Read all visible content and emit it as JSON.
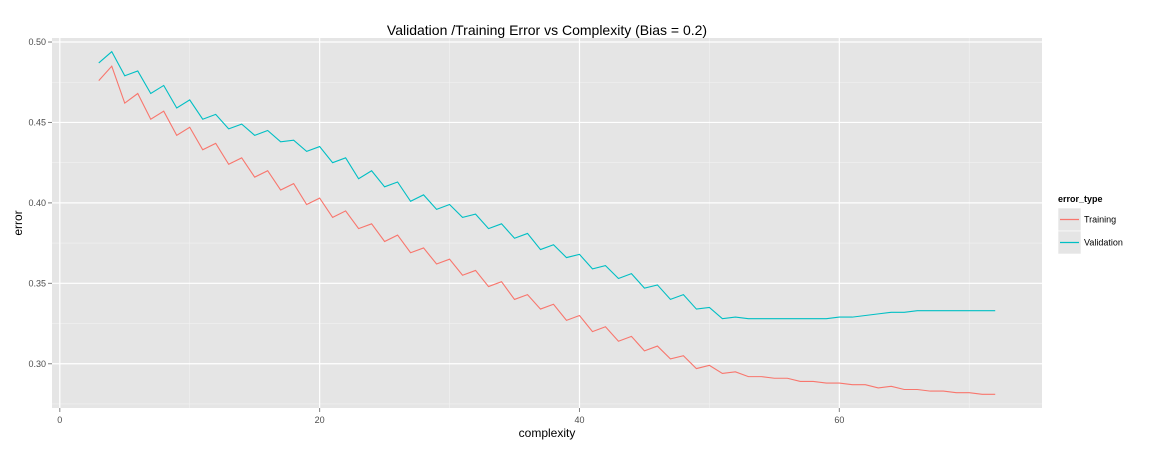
{
  "chart_data": {
    "type": "line",
    "title": "Validation /Training Error vs Complexity (Bias = 0.2)",
    "xlabel": "complexity",
    "ylabel": "error",
    "xlim": [
      -0.6,
      75.6
    ],
    "ylim": [
      0.2725,
      0.5025
    ],
    "x_ticks": [
      0,
      20,
      40,
      60
    ],
    "y_ticks": [
      0.3,
      0.35,
      0.4,
      0.45,
      0.5
    ],
    "x_tick_labels": [
      "0",
      "20",
      "40",
      "60"
    ],
    "y_tick_labels": [
      "0.30",
      "0.35",
      "0.40",
      "0.45",
      "0.50"
    ],
    "grid": true,
    "legend": {
      "title": "error_type",
      "placement": "right",
      "entries": [
        "Training",
        "Validation"
      ]
    },
    "colors": {
      "panel_background": "#e5e5e5",
      "grid_major": "#ffffff",
      "grid_minor": "#f2f2f2",
      "Training": "#f8766d",
      "Validation": "#00bfc4"
    },
    "series": [
      {
        "name": "Training",
        "x": [
          3,
          4,
          5,
          6,
          7,
          8,
          9,
          10,
          11,
          12,
          13,
          14,
          15,
          16,
          17,
          18,
          19,
          20,
          21,
          22,
          23,
          24,
          25,
          26,
          27,
          28,
          29,
          30,
          31,
          32,
          33,
          34,
          35,
          36,
          37,
          38,
          39,
          40,
          41,
          42,
          43,
          44,
          45,
          46,
          47,
          48,
          49,
          50,
          51,
          52,
          53,
          54,
          55,
          56,
          57,
          58,
          59,
          60,
          61,
          62,
          63,
          64,
          65,
          66,
          67,
          68,
          69,
          70,
          71,
          72
        ],
        "values": [
          0.476,
          0.485,
          0.462,
          0.468,
          0.452,
          0.457,
          0.442,
          0.447,
          0.433,
          0.437,
          0.424,
          0.428,
          0.416,
          0.42,
          0.408,
          0.412,
          0.399,
          0.403,
          0.391,
          0.395,
          0.384,
          0.387,
          0.376,
          0.38,
          0.369,
          0.372,
          0.362,
          0.365,
          0.355,
          0.358,
          0.348,
          0.351,
          0.34,
          0.343,
          0.334,
          0.337,
          0.327,
          0.33,
          0.32,
          0.323,
          0.314,
          0.317,
          0.308,
          0.311,
          0.303,
          0.305,
          0.297,
          0.299,
          0.294,
          0.295,
          0.292,
          0.292,
          0.291,
          0.291,
          0.289,
          0.289,
          0.288,
          0.288,
          0.287,
          0.287,
          0.285,
          0.286,
          0.284,
          0.284,
          0.283,
          0.283,
          0.282,
          0.282,
          0.281,
          0.281
        ]
      },
      {
        "name": "Validation",
        "x": [
          3,
          4,
          5,
          6,
          7,
          8,
          9,
          10,
          11,
          12,
          13,
          14,
          15,
          16,
          17,
          18,
          19,
          20,
          21,
          22,
          23,
          24,
          25,
          26,
          27,
          28,
          29,
          30,
          31,
          32,
          33,
          34,
          35,
          36,
          37,
          38,
          39,
          40,
          41,
          42,
          43,
          44,
          45,
          46,
          47,
          48,
          49,
          50,
          51,
          52,
          53,
          54,
          55,
          56,
          57,
          58,
          59,
          60,
          61,
          62,
          63,
          64,
          65,
          66,
          67,
          68,
          69,
          70,
          71,
          72
        ],
        "values": [
          0.487,
          0.494,
          0.479,
          0.482,
          0.468,
          0.473,
          0.459,
          0.464,
          0.452,
          0.455,
          0.446,
          0.449,
          0.442,
          0.445,
          0.438,
          0.439,
          0.432,
          0.435,
          0.425,
          0.428,
          0.415,
          0.42,
          0.41,
          0.413,
          0.401,
          0.405,
          0.396,
          0.399,
          0.391,
          0.393,
          0.384,
          0.387,
          0.378,
          0.381,
          0.371,
          0.374,
          0.366,
          0.368,
          0.359,
          0.361,
          0.353,
          0.356,
          0.347,
          0.349,
          0.34,
          0.343,
          0.334,
          0.335,
          0.328,
          0.329,
          0.328,
          0.328,
          0.328,
          0.328,
          0.328,
          0.328,
          0.328,
          0.329,
          0.329,
          0.33,
          0.331,
          0.332,
          0.332,
          0.333,
          0.333,
          0.333,
          0.333,
          0.333,
          0.333,
          0.333
        ]
      }
    ]
  }
}
